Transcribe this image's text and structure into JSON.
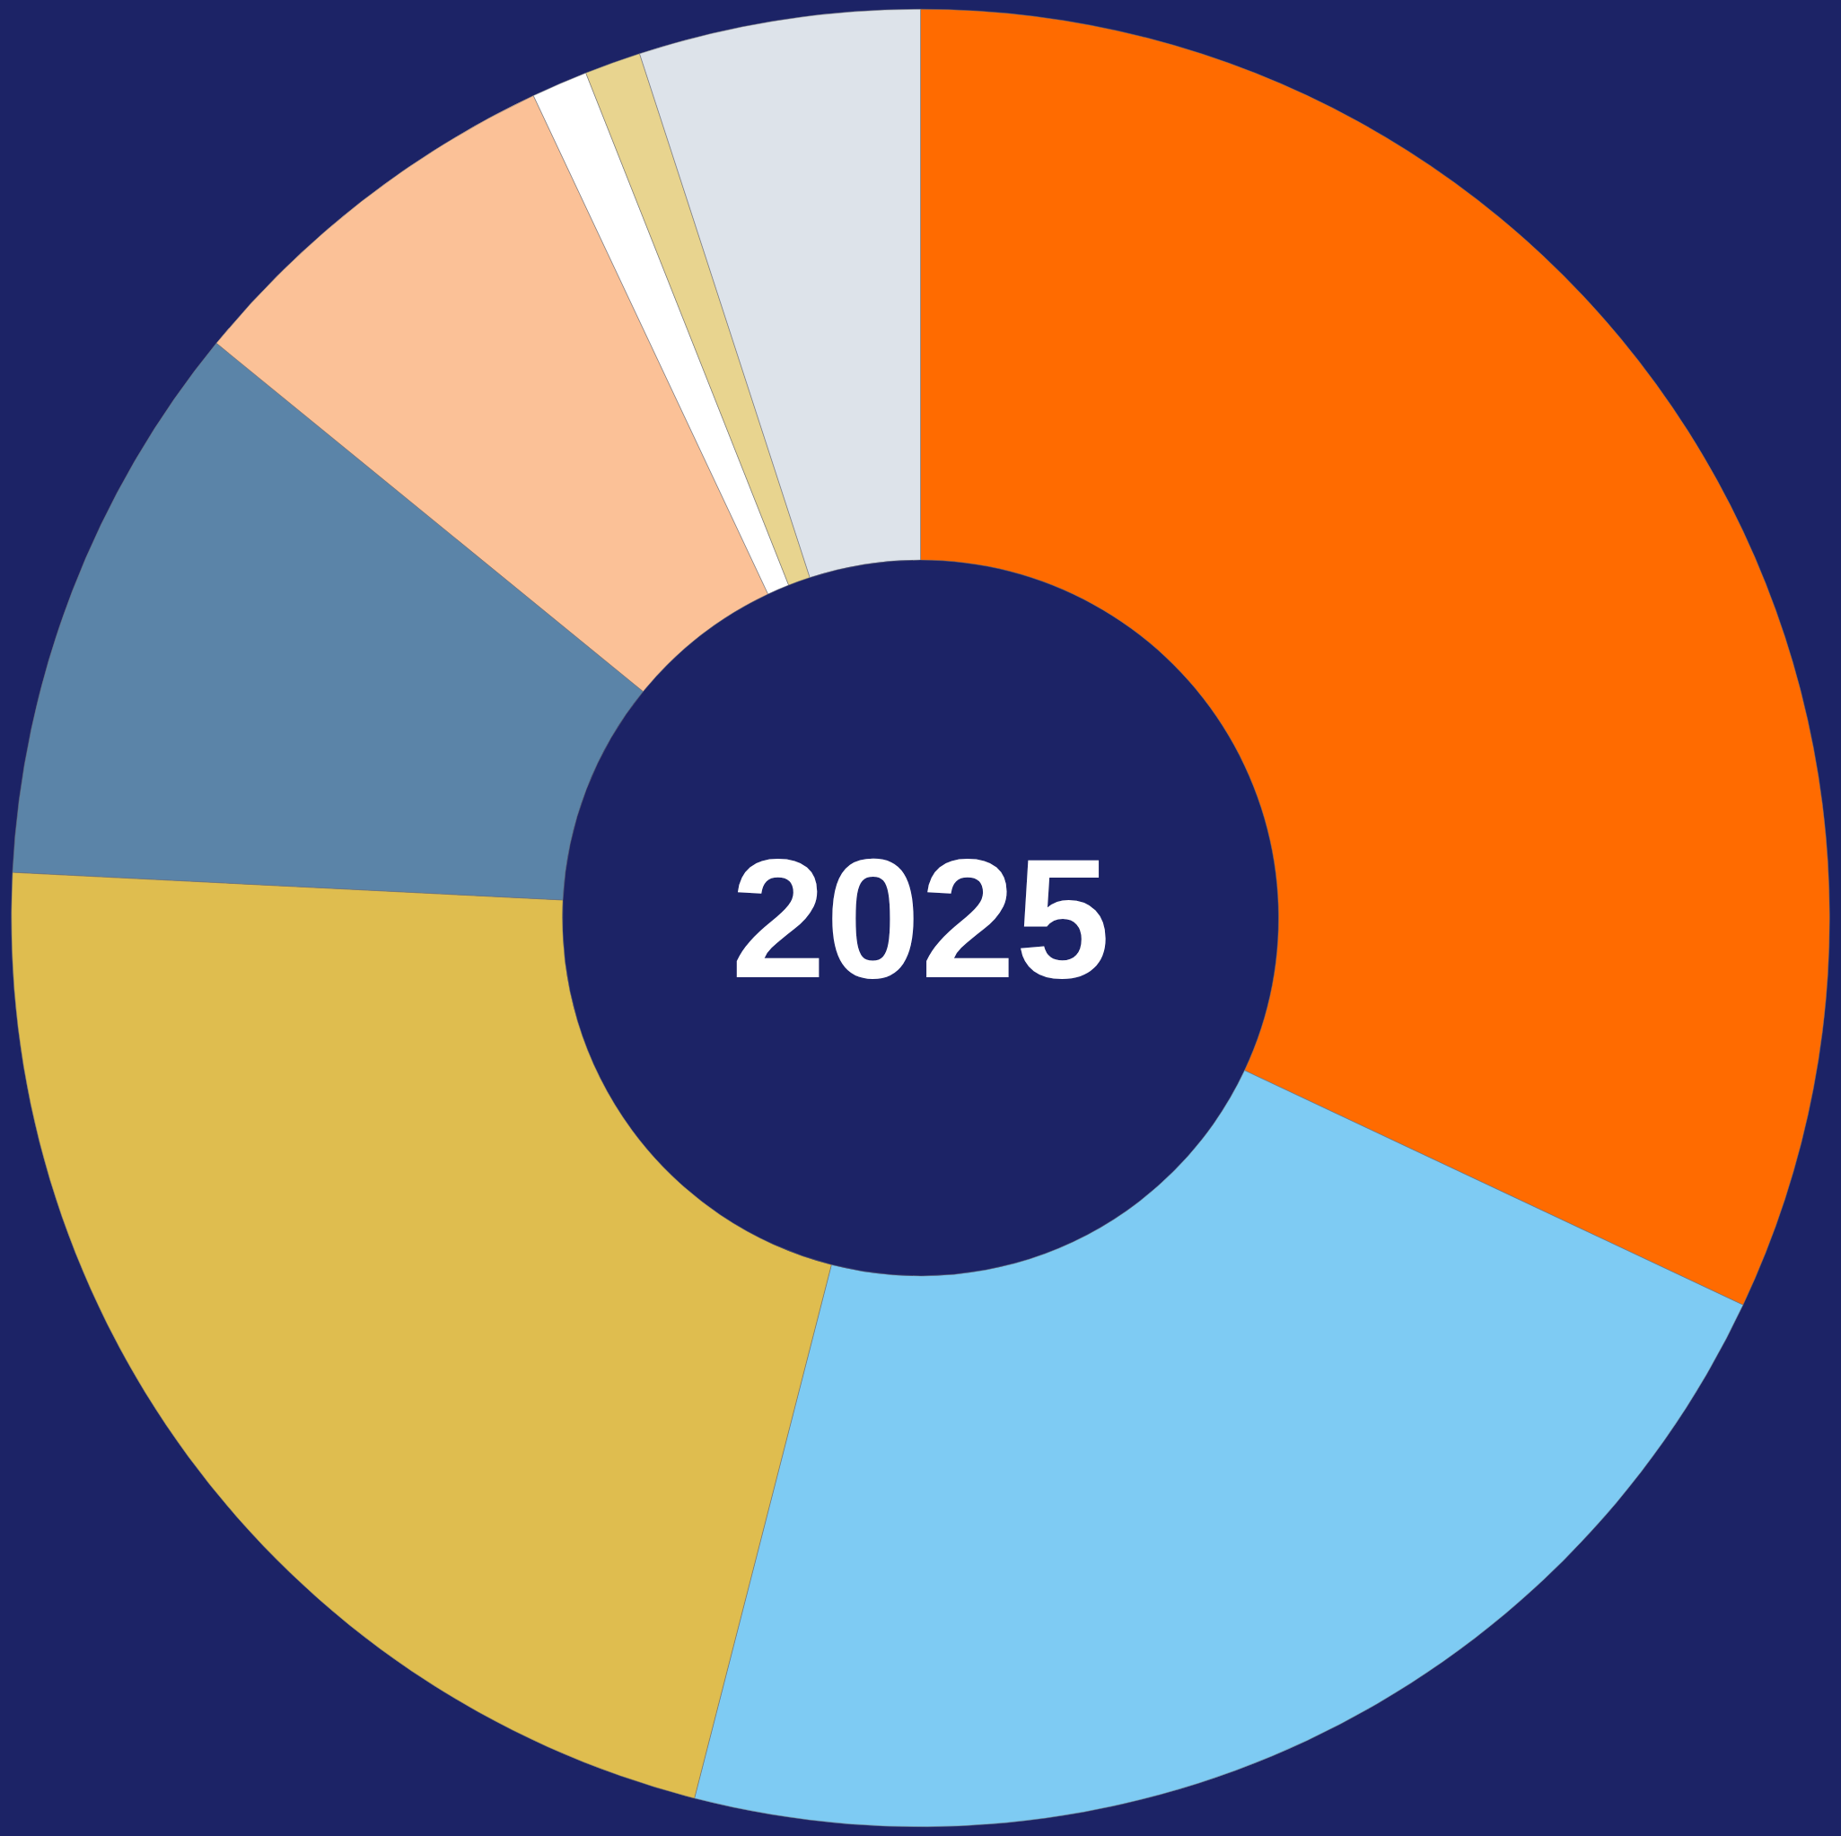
{
  "chart_data": {
    "type": "donut",
    "title": "2025",
    "categories": [
      null,
      null,
      null,
      null,
      null,
      null,
      null,
      null
    ],
    "values": [
      32.0,
      22.0,
      21.8,
      10.1,
      7.1,
      1.0,
      1.0,
      5.0
    ],
    "colors": [
      "#ff6b00",
      "#7ecbf3",
      "#dfbd4f",
      "#5b84a8",
      "#fbc197",
      "#ffffff",
      "#e8d48f",
      "#dde3ea"
    ]
  }
}
